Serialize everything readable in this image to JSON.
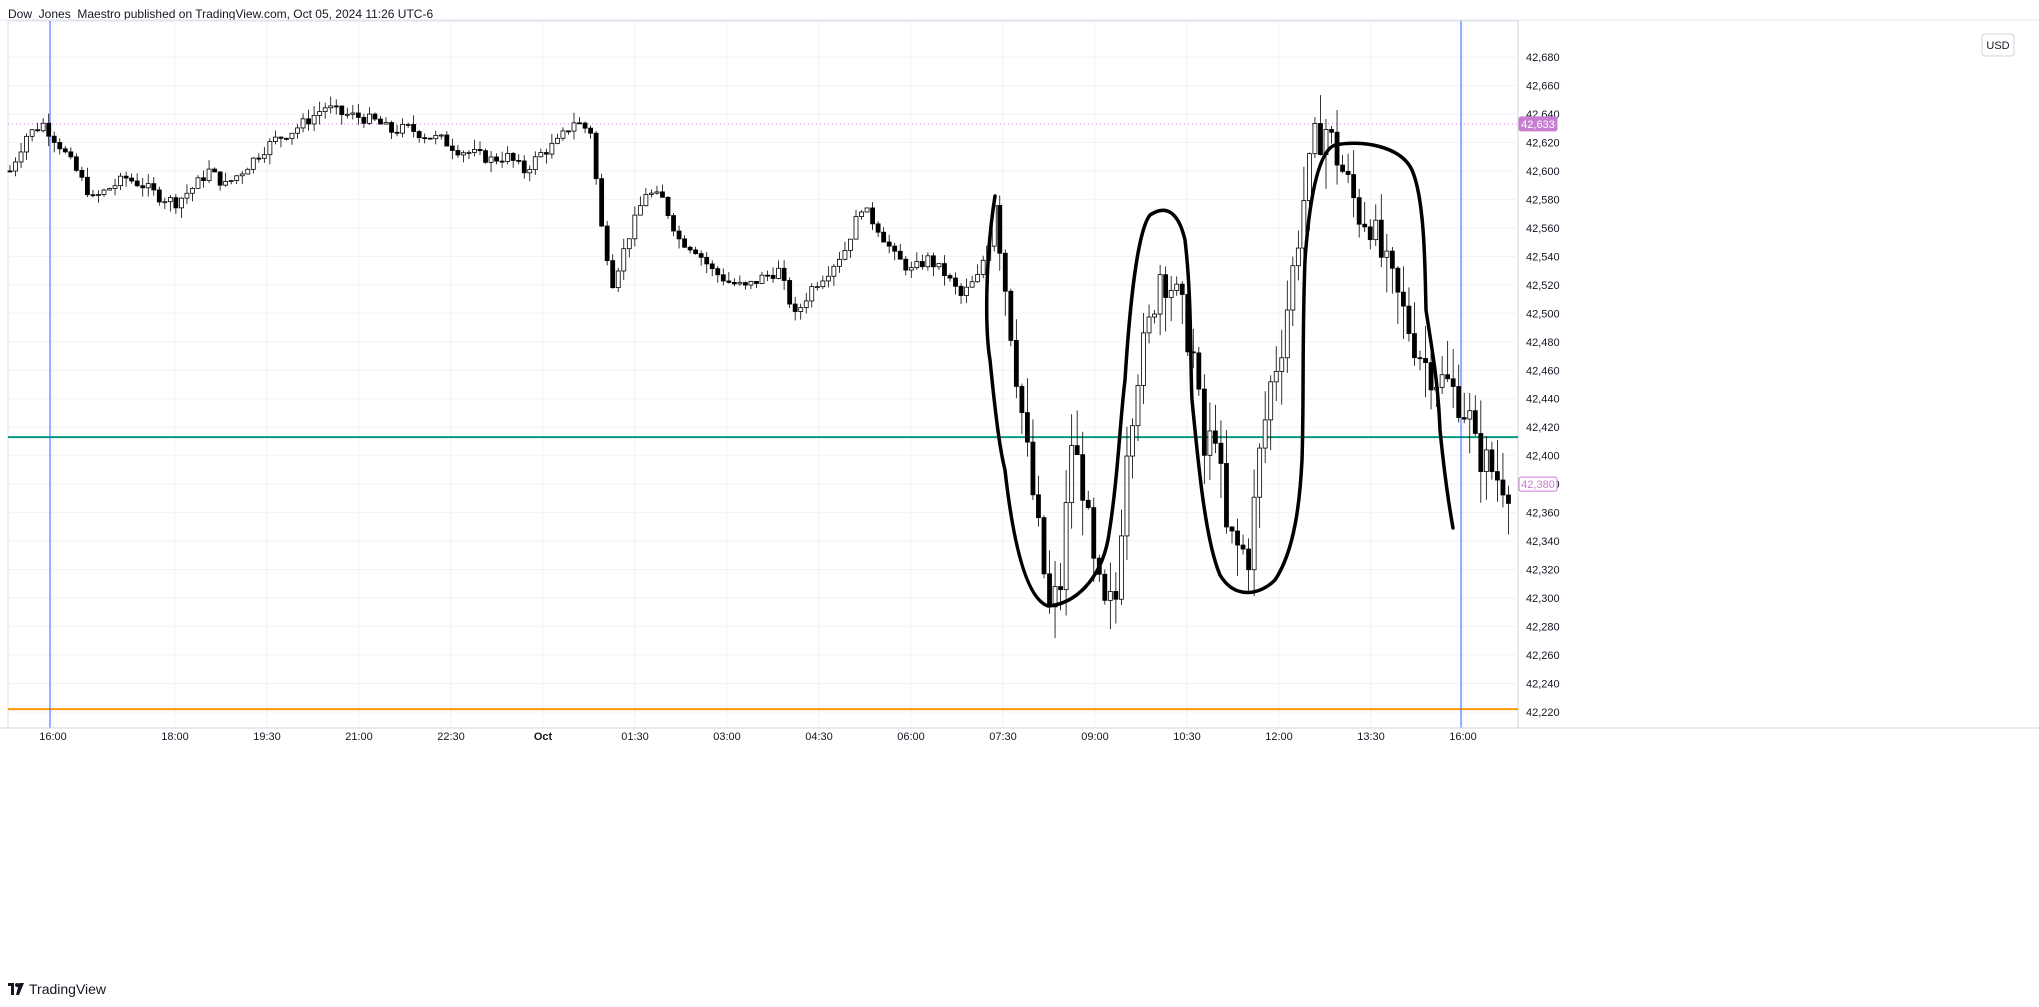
{
  "header": {
    "text": "Dow_Jones_Maestro published on TradingView.com, Oct 05, 2024 11:26 UTC-6"
  },
  "footer": {
    "brand": "TradingView"
  },
  "currency": "USD",
  "colors": {
    "candle": "#000000",
    "wick": "#9e9e9e",
    "green_line": "#089981",
    "orange_line": "#ff9800",
    "blue_vline": "#2962ff",
    "price_badge": "#c77dd1",
    "grid": "#f0f3fa"
  },
  "chart_data": {
    "type": "candlestick",
    "title": "",
    "ylim": [
      42210,
      42700
    ],
    "y_ticks": [
      42220,
      42240,
      42260,
      42280,
      42300,
      42320,
      42340,
      42360,
      42380,
      42400,
      42420,
      42440,
      42460,
      42480,
      42500,
      42520,
      42540,
      42560,
      42580,
      42600,
      42620,
      42640,
      42660,
      42680
    ],
    "x_ticks": [
      "16:00",
      "18:00",
      "19:30",
      "21:00",
      "22:30",
      "Oct",
      "01:30",
      "03:00",
      "04:30",
      "06:00",
      "07:30",
      "09:00",
      "10:30",
      "12:00",
      "13:30",
      "16:00"
    ],
    "price_labels": [
      {
        "value": 42633,
        "text": "42,633",
        "style": "filled"
      },
      {
        "value": 42380,
        "text": "42,380",
        "style": "outline"
      }
    ],
    "horizontal_lines": [
      {
        "value": 42413,
        "color": "#089981"
      },
      {
        "value": 42222,
        "color": "#ff9800"
      }
    ],
    "vertical_lines_at": [
      "16:00",
      "16:00"
    ],
    "close_path": [
      [
        0,
        42600
      ],
      [
        3,
        42625
      ],
      [
        6,
        42633
      ],
      [
        9,
        42618
      ],
      [
        12,
        42600
      ],
      [
        15,
        42580
      ],
      [
        18,
        42588
      ],
      [
        21,
        42595
      ],
      [
        24,
        42590
      ],
      [
        27,
        42582
      ],
      [
        30,
        42578
      ],
      [
        33,
        42588
      ],
      [
        36,
        42600
      ],
      [
        39,
        42590
      ],
      [
        42,
        42600
      ],
      [
        45,
        42612
      ],
      [
        48,
        42622
      ],
      [
        51,
        42628
      ],
      [
        54,
        42636
      ],
      [
        57,
        42645
      ],
      [
        60,
        42640
      ],
      [
        63,
        42638
      ],
      [
        66,
        42635
      ],
      [
        69,
        42628
      ],
      [
        72,
        42630
      ],
      [
        75,
        42625
      ],
      [
        78,
        42622
      ],
      [
        81,
        42615
      ],
      [
        84,
        42612
      ],
      [
        87,
        42608
      ],
      [
        90,
        42610
      ],
      [
        93,
        42600
      ],
      [
        96,
        42612
      ],
      [
        99,
        42620
      ],
      [
        102,
        42635
      ],
      [
        105,
        42628
      ],
      [
        107,
        42560
      ],
      [
        109,
        42522
      ],
      [
        112,
        42555
      ],
      [
        115,
        42585
      ],
      [
        118,
        42580
      ],
      [
        121,
        42552
      ],
      [
        124,
        42545
      ],
      [
        127,
        42530
      ],
      [
        130,
        42522
      ],
      [
        133,
        42518
      ],
      [
        136,
        42525
      ],
      [
        139,
        42530
      ],
      [
        142,
        42498
      ],
      [
        145,
        42518
      ],
      [
        148,
        42530
      ],
      [
        151,
        42545
      ],
      [
        154,
        42575
      ],
      [
        157,
        42560
      ],
      [
        160,
        42540
      ],
      [
        163,
        42530
      ],
      [
        166,
        42538
      ],
      [
        169,
        42528
      ],
      [
        172,
        42512
      ],
      [
        175,
        42525
      ],
      [
        177,
        42550
      ],
      [
        178,
        42583
      ],
      [
        180,
        42520
      ],
      [
        182,
        42460
      ],
      [
        184,
        42400
      ],
      [
        186,
        42345
      ],
      [
        188,
        42290
      ],
      [
        190,
        42310
      ],
      [
        192,
        42410
      ],
      [
        194,
        42380
      ],
      [
        196,
        42320
      ],
      [
        198,
        42290
      ],
      [
        200,
        42300
      ],
      [
        202,
        42410
      ],
      [
        204,
        42460
      ],
      [
        206,
        42490
      ],
      [
        208,
        42530
      ],
      [
        210,
        42520
      ],
      [
        212,
        42500
      ],
      [
        214,
        42470
      ],
      [
        216,
        42400
      ],
      [
        218,
        42420
      ],
      [
        220,
        42345
      ],
      [
        222,
        42335
      ],
      [
        224,
        42330
      ],
      [
        226,
        42400
      ],
      [
        228,
        42450
      ],
      [
        230,
        42480
      ],
      [
        232,
        42530
      ],
      [
        234,
        42580
      ],
      [
        236,
        42620
      ],
      [
        238,
        42630
      ],
      [
        240,
        42610
      ],
      [
        242,
        42590
      ],
      [
        244,
        42570
      ],
      [
        246,
        42565
      ],
      [
        248,
        42540
      ],
      [
        250,
        42520
      ],
      [
        252,
        42500
      ],
      [
        254,
        42480
      ],
      [
        256,
        42465
      ],
      [
        258,
        42455
      ],
      [
        260,
        42450
      ],
      [
        262,
        42440
      ],
      [
        264,
        42425
      ],
      [
        265,
        42405
      ],
      [
        267,
        42395
      ],
      [
        269,
        42385
      ],
      [
        271,
        42380
      ]
    ],
    "annotation_shapes": [
      "hand-drawn loop around 07:30–09:00 low",
      "hand-drawn loop around 09:00–10:30 high",
      "hand-drawn loop around 10:30–12:00 low",
      "hand-drawn loop around 12:00–16:00 high"
    ]
  }
}
